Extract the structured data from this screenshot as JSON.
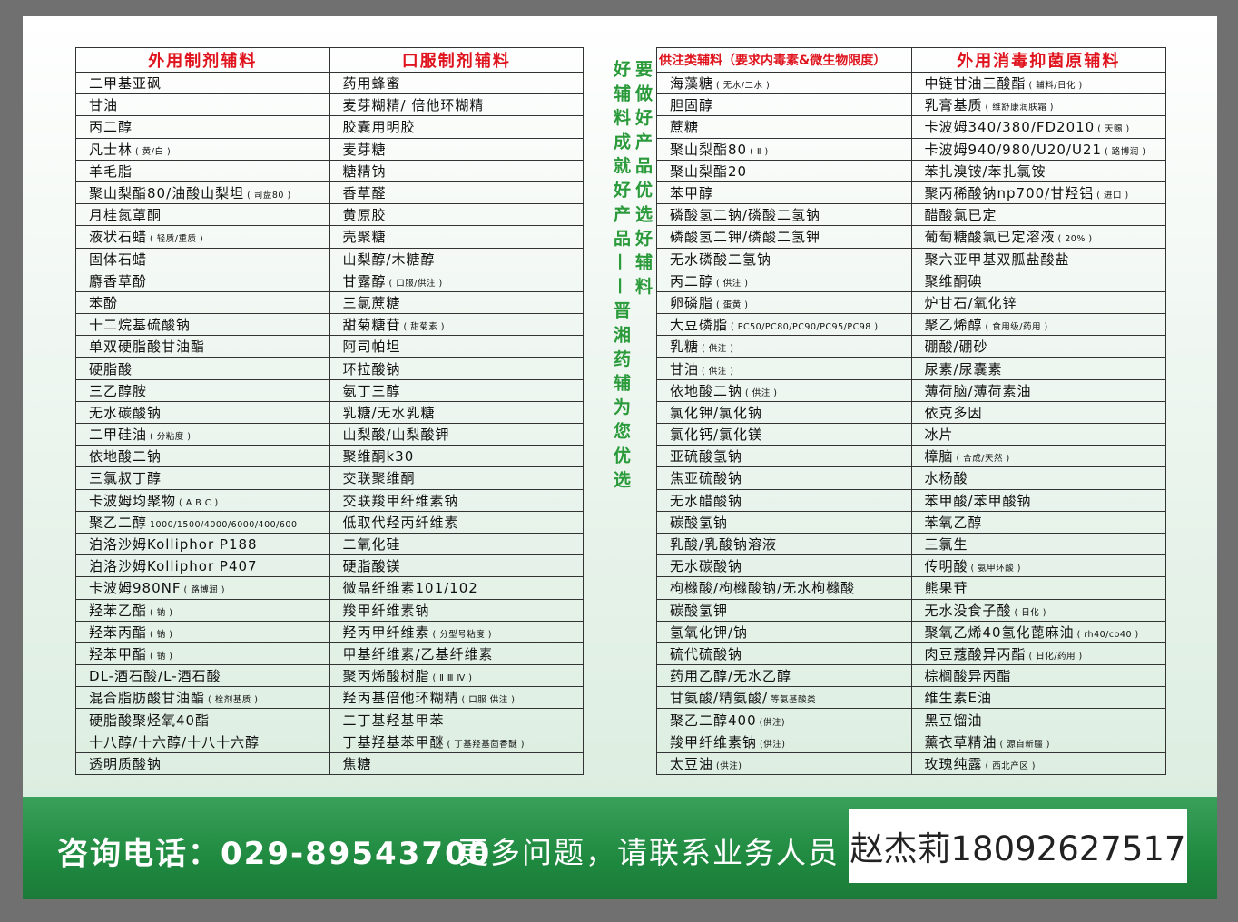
{
  "left_table": {
    "headers": [
      "外用制剂辅料",
      "口服制剂辅料"
    ],
    "rows": [
      [
        {
          "t": "二甲基亚砜"
        },
        {
          "t": "药用蜂蜜"
        }
      ],
      [
        {
          "t": "甘油"
        },
        {
          "t": "麦芽糊精/ 倍他环糊精"
        }
      ],
      [
        {
          "t": "丙二醇"
        },
        {
          "t": "胶囊用明胶"
        }
      ],
      [
        {
          "t": "凡士林",
          "s": "( 黄/白 )"
        },
        {
          "t": "麦芽糖"
        }
      ],
      [
        {
          "t": "羊毛脂"
        },
        {
          "t": "糖精钠"
        }
      ],
      [
        {
          "t": "聚山梨酯80/油酸山梨坦",
          "s": "( 司盘80 )"
        },
        {
          "t": "香草醛"
        }
      ],
      [
        {
          "t": "月桂氮䓬酮"
        },
        {
          "t": "黄原胶"
        }
      ],
      [
        {
          "t": "液状石蜡",
          "s": "( 轻质/重质 )"
        },
        {
          "t": "壳聚糖"
        }
      ],
      [
        {
          "t": "固体石蜡"
        },
        {
          "t": "山梨醇/木糖醇"
        }
      ],
      [
        {
          "t": "麝香草酚"
        },
        {
          "t": "甘露醇",
          "s": "( 口服/供注 )"
        }
      ],
      [
        {
          "t": "苯酚"
        },
        {
          "t": "三氯蔗糖"
        }
      ],
      [
        {
          "t": "十二烷基硫酸钠"
        },
        {
          "t": "甜菊糖苷",
          "s": "( 甜菊素 )"
        }
      ],
      [
        {
          "t": "单双硬脂酸甘油酯"
        },
        {
          "t": "阿司帕坦"
        }
      ],
      [
        {
          "t": "硬脂酸"
        },
        {
          "t": "环拉酸钠"
        }
      ],
      [
        {
          "t": "三乙醇胺"
        },
        {
          "t": "氨丁三醇"
        }
      ],
      [
        {
          "t": "无水碳酸钠"
        },
        {
          "t": "乳糖/无水乳糖"
        }
      ],
      [
        {
          "t": "二甲硅油",
          "s": "( 分粘度 )"
        },
        {
          "t": "山梨酸/山梨酸钾"
        }
      ],
      [
        {
          "t": "依地酸二钠"
        },
        {
          "t": "聚维酮k30"
        }
      ],
      [
        {
          "t": "三氯叔丁醇"
        },
        {
          "t": "交联聚维酮"
        }
      ],
      [
        {
          "t": "卡波姆均聚物",
          "s": "( A B C )"
        },
        {
          "t": "交联羧甲纤维素钠"
        }
      ],
      [
        {
          "t": "聚乙二醇",
          "s": "1000/1500/4000/6000/400/600"
        },
        {
          "t": "低取代羟丙纤维素"
        }
      ],
      [
        {
          "t": "泊洛沙姆Kolliphor   P188"
        },
        {
          "t": "二氧化硅"
        }
      ],
      [
        {
          "t": "泊洛沙姆Kolliphor   P407"
        },
        {
          "t": "硬脂酸镁"
        }
      ],
      [
        {
          "t": "卡波姆980NF",
          "s": "( 路博润 )"
        },
        {
          "t": "微晶纤维素101/102"
        }
      ],
      [
        {
          "t": "羟苯乙酯",
          "s": "( 钠 )"
        },
        {
          "t": "羧甲纤维素钠"
        }
      ],
      [
        {
          "t": "羟苯丙酯",
          "s": "( 钠 )"
        },
        {
          "t": "羟丙甲纤维素",
          "s": "( 分型号粘度 )"
        }
      ],
      [
        {
          "t": "羟苯甲酯",
          "s": "( 钠 )"
        },
        {
          "t": "甲基纤维素/乙基纤维素"
        }
      ],
      [
        {
          "t": "DL-酒石酸/L-酒石酸"
        },
        {
          "t": "聚丙烯酸树脂",
          "s": "( Ⅱ Ⅲ Ⅳ )"
        }
      ],
      [
        {
          "t": "混合脂肪酸甘油酯",
          "s": "( 栓剂基质 )"
        },
        {
          "t": "羟丙基倍他环糊精",
          "s": "( 口服 供注 )"
        }
      ],
      [
        {
          "t": "硬脂酸聚烃氧40酯"
        },
        {
          "t": "二丁基羟基甲苯"
        }
      ],
      [
        {
          "t": "十八醇/十六醇/十八十六醇"
        },
        {
          "t": "丁基羟基苯甲醚",
          "s": "( 丁基羟基茴香醚 )"
        }
      ],
      [
        {
          "t": "透明质酸钠"
        },
        {
          "t": "焦糖"
        }
      ]
    ]
  },
  "right_table": {
    "headers": [
      "供注类辅料（要求内毒素&微生物限度）",
      "外用消毒抑菌原辅料"
    ],
    "rows": [
      [
        {
          "t": "海藻糖",
          "s": "( 无水/二水 )"
        },
        {
          "t": "中链甘油三酸酯",
          "s": "( 辅料/日化 )"
        }
      ],
      [
        {
          "t": "胆固醇"
        },
        {
          "t": "乳膏基质",
          "s": "( 维舒康润肤霜 )"
        }
      ],
      [
        {
          "t": "蔗糖"
        },
        {
          "t": "卡波姆340/380/FD2010",
          "s": "( 天赐 )"
        }
      ],
      [
        {
          "t": "聚山梨酯80",
          "s": "( Ⅱ )"
        },
        {
          "t": "卡波姆940/980/U20/U21",
          "s": "( 路博润 )"
        }
      ],
      [
        {
          "t": "聚山梨酯20"
        },
        {
          "t": "苯扎溴铵/苯扎氯铵"
        }
      ],
      [
        {
          "t": "苯甲醇"
        },
        {
          "t": "聚丙稀酸钠np700/甘羟铝",
          "s": "( 进口 )"
        }
      ],
      [
        {
          "t": "磷酸氢二钠/磷酸二氢钠"
        },
        {
          "t": "醋酸氯已定"
        }
      ],
      [
        {
          "t": "磷酸氢二钾/磷酸二氢钾"
        },
        {
          "t": "葡萄糖酸氯已定溶液",
          "s": "( 20% )"
        }
      ],
      [
        {
          "t": "无水磷酸二氢钠"
        },
        {
          "t": "聚六亚甲基双胍盐酸盐"
        }
      ],
      [
        {
          "t": "丙二醇",
          "s": "( 供注 )"
        },
        {
          "t": "聚维酮碘"
        }
      ],
      [
        {
          "t": "卵磷脂",
          "s": "( 蛋黄 )"
        },
        {
          "t": "炉甘石/氧化锌"
        }
      ],
      [
        {
          "t": "大豆磷脂",
          "s": "( PC50/PC80/PC90/PC95/PC98 )"
        },
        {
          "t": "聚乙烯醇",
          "s": "( 食用级/药用 )"
        }
      ],
      [
        {
          "t": "乳糖",
          "s": "( 供注 )"
        },
        {
          "t": "硼酸/硼砂"
        }
      ],
      [
        {
          "t": "甘油",
          "s": "( 供注 )"
        },
        {
          "t": "尿素/尿囊素"
        }
      ],
      [
        {
          "t": "依地酸二钠",
          "s": "( 供注 )"
        },
        {
          "t": "薄荷脑/薄荷素油"
        }
      ],
      [
        {
          "t": "氯化钾/氯化钠"
        },
        {
          "t": "依克多因"
        }
      ],
      [
        {
          "t": "氯化钙/氯化镁"
        },
        {
          "t": "冰片"
        }
      ],
      [
        {
          "t": "亚硫酸氢钠"
        },
        {
          "t": "樟脑",
          "s": "( 合成/天然 )"
        }
      ],
      [
        {
          "t": "焦亚硫酸钠"
        },
        {
          "t": "水杨酸"
        }
      ],
      [
        {
          "t": "无水醋酸钠"
        },
        {
          "t": "苯甲酸/苯甲酸钠"
        }
      ],
      [
        {
          "t": "碳酸氢钠"
        },
        {
          "t": "苯氧乙醇"
        }
      ],
      [
        {
          "t": "乳酸/乳酸钠溶液"
        },
        {
          "t": "三氯生"
        }
      ],
      [
        {
          "t": "无水碳酸钠"
        },
        {
          "t": "传明酸",
          "s": "( 氨甲环酸 )"
        }
      ],
      [
        {
          "t": "枸橼酸/枸橼酸钠/无水枸橼酸"
        },
        {
          "t": "熊果苷"
        }
      ],
      [
        {
          "t": "碳酸氢钾"
        },
        {
          "t": "无水没食子酸",
          "s": "( 日化 )"
        }
      ],
      [
        {
          "t": "氢氧化钾/钠"
        },
        {
          "t": "聚氧乙烯40氢化蓖麻油",
          "s": "( rh40/co40 )"
        }
      ],
      [
        {
          "t": "硫代硫酸钠"
        },
        {
          "t": "肉豆蔻酸异丙酯",
          "s": "( 日化/药用 )"
        }
      ],
      [
        {
          "t": "药用乙醇/无水乙醇"
        },
        {
          "t": "棕榈酸异丙酯"
        }
      ],
      [
        {
          "t": "甘氨酸/精氨酸/",
          "s": "等氨基酸类"
        },
        {
          "t": "维生素E油"
        }
      ],
      [
        {
          "t": "聚乙二醇400",
          "s": "(供注)"
        },
        {
          "t": "黑豆馏油"
        }
      ],
      [
        {
          "t": "羧甲纤维素钠",
          "s": "(供注)"
        },
        {
          "t": "薰衣草精油",
          "s": "( 源自新疆 )"
        }
      ],
      [
        {
          "t": "太豆油",
          "s": "(供注)"
        },
        {
          "t": "玫瑰纯露",
          "s": "( 西北产区 )"
        }
      ]
    ]
  },
  "slogan": {
    "line1": "要做好产品优选好辅料",
    "line2": "好辅料成就好产品——晋湘药辅为您优选"
  },
  "footer": {
    "phone": "咨询电话：029-89543700",
    "more": "更多问题，请联系业务人员",
    "contact": "赵杰莉18092627517"
  },
  "colors": {
    "header_red": "#e0141e",
    "slogan_green": "#2a9a3a",
    "footer_green": "#1f8a40"
  }
}
